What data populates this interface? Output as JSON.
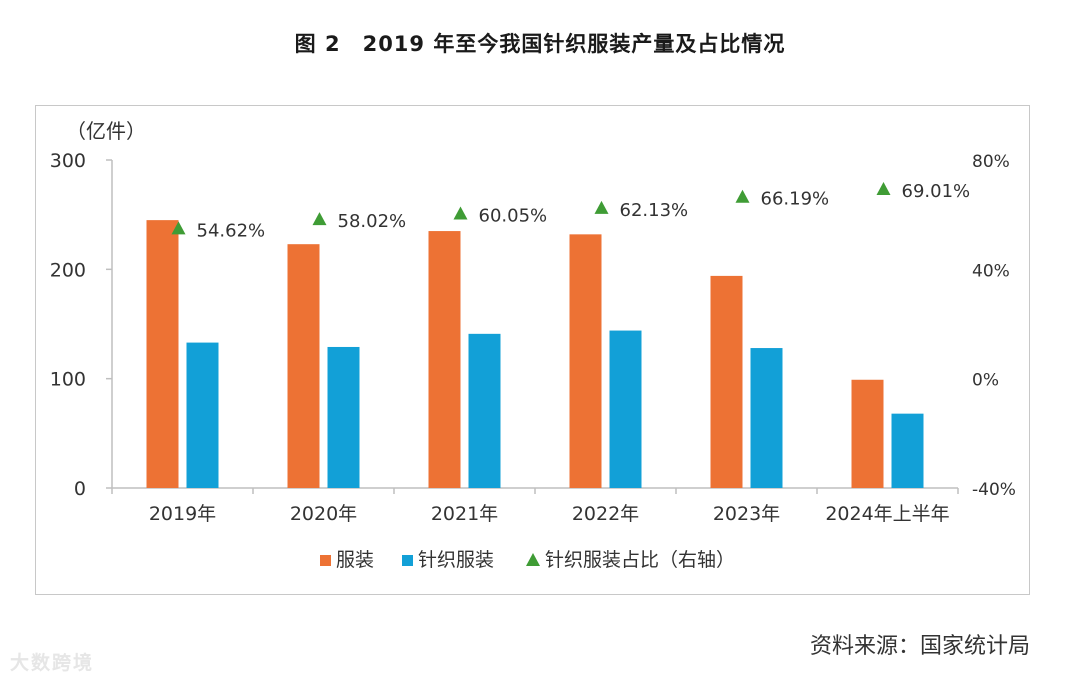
{
  "figure": {
    "title": "图 2　2019 年至今我国针织服装产量及占比情况",
    "source": "资料来源：国家统计局",
    "watermark": "大数跨境"
  },
  "colors": {
    "garments": "#ED7234",
    "knitted": "#12A0D7",
    "share": "#3F9C35",
    "axis": "#bfbfbf",
    "text": "#333333"
  },
  "chart_data": {
    "type": "bar",
    "title": "图 2　2019 年至今我国针织服装产量及占比情况",
    "categories": [
      "2019年",
      "2020年",
      "2021年",
      "2022年",
      "2023年",
      "2024年上半年"
    ],
    "series": [
      {
        "name": "服装",
        "axis": "left",
        "values": [
          245,
          223,
          235,
          232,
          194,
          99
        ]
      },
      {
        "name": "针织服装",
        "axis": "left",
        "values": [
          133,
          129,
          141,
          144,
          128,
          68
        ]
      },
      {
        "name": "针织服装占比（右轴）",
        "axis": "right",
        "type": "scatter",
        "marker": "triangle",
        "values": [
          54.62,
          58.02,
          60.05,
          62.13,
          66.19,
          69.01
        ]
      }
    ],
    "point_labels": [
      "54.62%",
      "58.02%",
      "60.05%",
      "62.13%",
      "66.19%",
      "69.01%"
    ],
    "ylabel": "（亿件）",
    "ylim": [
      0,
      300
    ],
    "yticks": [
      0,
      100,
      200,
      300
    ],
    "y2lim": [
      -40,
      80
    ],
    "y2ticks": [
      "-40%",
      "0%",
      "40%",
      "80%"
    ],
    "y2tick_values": [
      -40,
      0,
      40,
      80
    ],
    "legend": [
      "服装",
      "针织服装",
      "针织服装占比（右轴）"
    ],
    "legend_position": "bottom",
    "grid": false
  }
}
